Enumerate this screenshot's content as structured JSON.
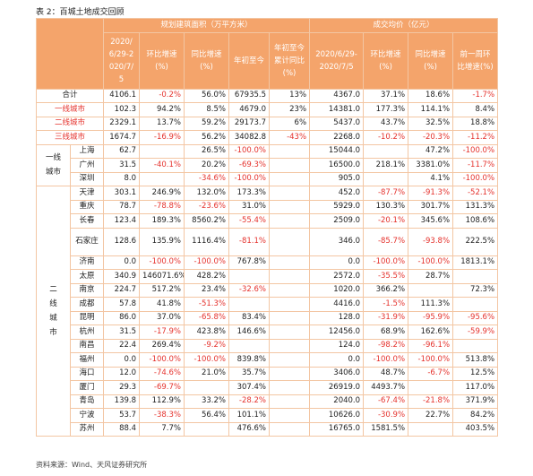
{
  "title": "表 2：百城土地成交回顾",
  "source": "资料来源：Wind、天风证券研究所",
  "header": {
    "group_titles": [
      "规划建筑面积（万平方米）",
      "成交均价（亿元）"
    ],
    "columns": [
      "2020/6/29-2020/7/5",
      "环比增速(%)",
      "同比增速(%)",
      "年初至今",
      "年初至今累计同比(%)",
      "2020/6/29-2020/7/5",
      "环比增速(%)",
      "同比增速(%)",
      "前一周环比增速(%)"
    ]
  },
  "summary_rows": [
    {
      "label": "合计",
      "cells": [
        "4106.1",
        "-0.2%",
        "56.0%",
        "67935.5",
        "13%",
        "4367.0",
        "37.1%",
        "18.6%",
        "-1.7%"
      ]
    },
    {
      "label": "一线城市",
      "cells": [
        "102.3",
        "94.2%",
        "8.5%",
        "4679.0",
        "23%",
        "14381.0",
        "177.3%",
        "114.1%",
        "8.4%"
      ]
    },
    {
      "label": "二线城市",
      "cells": [
        "2329.1",
        "13.7%",
        "59.2%",
        "29173.7",
        "6%",
        "5437.0",
        "43.7%",
        "32.5%",
        "18.8%"
      ]
    },
    {
      "label": "三线城市",
      "cells": [
        "1674.7",
        "-16.9%",
        "56.2%",
        "34082.8",
        "-43%",
        "2268.0",
        "-10.2%",
        "-20.3%",
        "-11.2%"
      ]
    }
  ],
  "groups": [
    {
      "label": "一线城市",
      "rows": [
        {
          "city": "上海",
          "cells": [
            "62.7",
            null,
            "26.5%",
            "-100.0%",
            null,
            "15044.0",
            null,
            "47.2%",
            "-100.0%"
          ]
        },
        {
          "city": "广州",
          "cells": [
            "31.5",
            "-40.1%",
            "20.2%",
            "-69.3%",
            null,
            "16500.0",
            "218.1%",
            "3381.0%",
            "-11.7%"
          ]
        },
        {
          "city": "深圳",
          "cells": [
            "8.0",
            null,
            "-34.6%",
            "-100.0%",
            null,
            "905.0",
            null,
            "4.1%",
            "-100.0%"
          ]
        }
      ]
    },
    {
      "label": "二线城市",
      "rows": [
        {
          "city": "天津",
          "cells": [
            "303.1",
            "246.9%",
            "132.0%",
            "173.3%",
            null,
            "452.0",
            "-87.7%",
            "-91.3%",
            "-52.1%"
          ]
        },
        {
          "city": "重庆",
          "cells": [
            "78.7",
            "-78.8%",
            "-23.6%",
            "31.0%",
            null,
            "5929.0",
            "130.3%",
            "301.7%",
            "131.3%"
          ]
        },
        {
          "city": "长春",
          "cells": [
            "123.4",
            "189.3%",
            "8560.2%",
            "-55.4%",
            null,
            "2509.0",
            "-20.1%",
            "345.6%",
            "108.6%"
          ]
        },
        {
          "city": "石家庄",
          "cells": [
            "128.6",
            "135.9%",
            "1116.4%",
            "-81.1%",
            null,
            "346.0",
            "-85.7%",
            "-93.8%",
            "222.5%"
          ]
        },
        {
          "city": "济南",
          "cells": [
            "0.0",
            "-100.0%",
            "-100.0%",
            "767.8%",
            null,
            "0.0",
            "-100.0%",
            "-100.0%",
            "1813.1%"
          ]
        },
        {
          "city": "太原",
          "cells": [
            "340.9",
            "146071.6%",
            "428.2%",
            null,
            null,
            "2572.0",
            "-35.5%",
            "28.7%",
            null
          ]
        },
        {
          "city": "南京",
          "cells": [
            "224.7",
            "517.2%",
            "23.4%",
            "-32.6%",
            null,
            "1020.0",
            "366.2%",
            null,
            "72.3%"
          ]
        },
        {
          "city": "成都",
          "cells": [
            "57.8",
            "41.8%",
            "-51.3%",
            null,
            null,
            "4416.0",
            "-1.5%",
            "111.3%",
            null
          ]
        },
        {
          "city": "昆明",
          "cells": [
            "86.0",
            "37.0%",
            "-65.8%",
            "83.4%",
            null,
            "128.0",
            "-31.9%",
            "-95.9%",
            "-95.6%"
          ]
        },
        {
          "city": "杭州",
          "cells": [
            "31.5",
            "-17.9%",
            "423.8%",
            "146.6%",
            null,
            "12456.0",
            "68.9%",
            "162.6%",
            "-59.9%"
          ]
        },
        {
          "city": "南昌",
          "cells": [
            "22.4",
            "269.4%",
            "-9.2%",
            null,
            null,
            "124.0",
            "-98.2%",
            "-96.1%",
            null
          ]
        },
        {
          "city": "福州",
          "cells": [
            "0.0",
            "-100.0%",
            "-100.0%",
            "839.8%",
            null,
            "0.0",
            "-100.0%",
            "-100.0%",
            "513.8%"
          ]
        },
        {
          "city": "海口",
          "cells": [
            "12.0",
            "-74.6%",
            "21.0%",
            "35.7%",
            null,
            "3406.0",
            "48.7%",
            "-6.7%",
            "12.5%"
          ]
        },
        {
          "city": "厦门",
          "cells": [
            "29.3",
            "-69.7%",
            null,
            "307.4%",
            null,
            "26919.0",
            "4493.7%",
            null,
            "117.0%"
          ]
        },
        {
          "city": "青岛",
          "cells": [
            "139.8",
            "112.9%",
            "33.2%",
            "-28.2%",
            null,
            "2040.0",
            "-67.4%",
            "-21.8%",
            "371.9%"
          ]
        },
        {
          "city": "宁波",
          "cells": [
            "53.7",
            "-38.3%",
            "56.4%",
            "101.1%",
            null,
            "10626.0",
            "-30.9%",
            "22.7%",
            "84.2%"
          ]
        },
        {
          "city": "苏州",
          "cells": [
            "88.4",
            "7.7%",
            null,
            "476.6%",
            null,
            "16765.0",
            "1581.5%",
            null,
            "403.5%"
          ]
        }
      ]
    }
  ]
}
